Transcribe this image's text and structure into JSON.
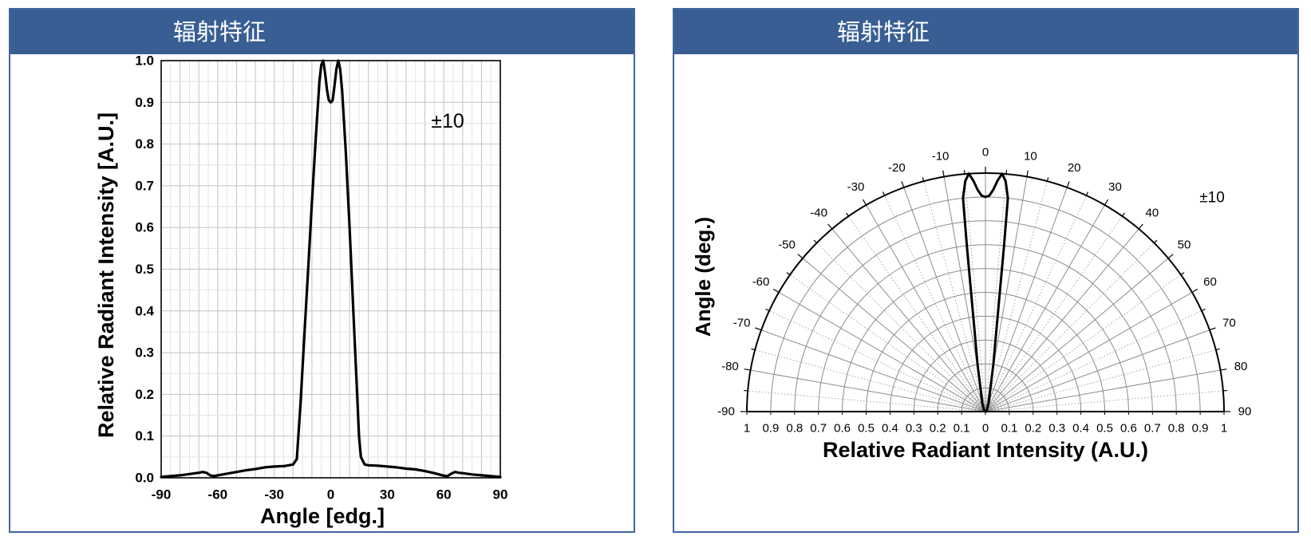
{
  "panels": [
    {
      "title": "辐射特征"
    },
    {
      "title": "辐射特征"
    }
  ],
  "colors": {
    "header": "#385e93",
    "border": "#4066a0",
    "curve": "#000000"
  },
  "chart_data": [
    {
      "type": "line",
      "xlabel": "Angle [edg.]",
      "ylabel": "Relative Radiant Intensity [A.U.]",
      "xlim": [
        -90,
        90
      ],
      "ylim": [
        0,
        1.0
      ],
      "x_ticks": [
        "-90",
        "-60",
        "-30",
        "0",
        "30",
        "60",
        "90"
      ],
      "y_ticks": [
        "0.0",
        "0.1",
        "0.2",
        "0.3",
        "0.4",
        "0.5",
        "0.6",
        "0.7",
        "0.8",
        "0.9",
        "1.0"
      ],
      "grid": true,
      "annotation": "±10",
      "series": [
        {
          "x": [
            -90,
            -85,
            -80,
            -75,
            -70,
            -68,
            -66,
            -64,
            -62,
            -60,
            -55,
            -50,
            -45,
            -40,
            -35,
            -30,
            -25,
            -20,
            -18,
            -16,
            -14,
            -12,
            -10,
            -8,
            -6,
            -5,
            -4,
            -3,
            -2,
            -1,
            0,
            1,
            2,
            3,
            4,
            5,
            6,
            8,
            10,
            12,
            14,
            15,
            16,
            18,
            20,
            25,
            30,
            35,
            40,
            45,
            50,
            55,
            60,
            62,
            64,
            66,
            68,
            70,
            75,
            80,
            85,
            90
          ],
          "y": [
            0.002,
            0.004,
            0.006,
            0.009,
            0.012,
            0.014,
            0.012,
            0.006,
            0.004,
            0.006,
            0.01,
            0.014,
            0.018,
            0.021,
            0.025,
            0.027,
            0.028,
            0.032,
            0.045,
            0.18,
            0.34,
            0.5,
            0.66,
            0.81,
            0.95,
            0.99,
            1.0,
            0.97,
            0.93,
            0.905,
            0.9,
            0.905,
            0.94,
            0.98,
            1.0,
            0.98,
            0.93,
            0.78,
            0.6,
            0.4,
            0.2,
            0.1,
            0.05,
            0.032,
            0.03,
            0.029,
            0.027,
            0.025,
            0.022,
            0.02,
            0.016,
            0.011,
            0.005,
            0.004,
            0.01,
            0.014,
            0.012,
            0.011,
            0.008,
            0.006,
            0.004,
            0.002
          ]
        }
      ]
    },
    {
      "type": "line",
      "coordinates": "polar",
      "xlabel": "Relative Radiant Intensity (A.U.)",
      "ylabel": "Angle (deg.)",
      "angle_range": [
        -90,
        90
      ],
      "r_range": [
        0,
        1
      ],
      "angle_ticks": [
        "-90",
        "-80",
        "-70",
        "-60",
        "-50",
        "-40",
        "-30",
        "-20",
        "-10",
        "0",
        "10",
        "20",
        "30",
        "40",
        "50",
        "60",
        "70",
        "80",
        "90"
      ],
      "r_ticks": [
        "1",
        "0.9",
        "0.8",
        "0.7",
        "0.6",
        "0.5",
        "0.4",
        "0.3",
        "0.2",
        "0.1",
        "0",
        "0.1",
        "0.2",
        "0.3",
        "0.4",
        "0.5",
        "0.6",
        "0.7",
        "0.8",
        "0.9",
        "1"
      ],
      "grid": true,
      "annotation": "±10",
      "series": [
        {
          "angle": [
            -90,
            -60,
            -40,
            -20,
            -12,
            -9.5,
            -8,
            -7,
            -6.4,
            -6,
            -5,
            -4,
            -3,
            -2,
            -1,
            0,
            1,
            2,
            3,
            4,
            5,
            6,
            6.4,
            7,
            8,
            9.5,
            12,
            20,
            40,
            60,
            90
          ],
          "r": [
            0,
            0.005,
            0.01,
            0.04,
            0.1,
            0.2,
            0.3,
            0.47,
            0.7,
            0.9,
            0.97,
            1.0,
            0.97,
            0.93,
            0.905,
            0.9,
            0.905,
            0.93,
            0.97,
            1.0,
            0.97,
            0.9,
            0.7,
            0.47,
            0.3,
            0.2,
            0.1,
            0.04,
            0.01,
            0.005,
            0
          ]
        }
      ]
    }
  ]
}
